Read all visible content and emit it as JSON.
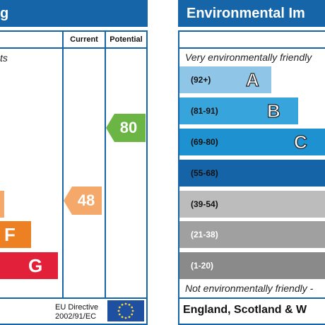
{
  "left_panel": {
    "title_fragment": "g",
    "col_current": "Current",
    "col_potential": "Potential",
    "italic_fragment": "ts",
    "bands": [
      {
        "letter": "",
        "color": "#f4a86a"
      },
      {
        "letter": "F",
        "color": "#ee8024"
      },
      {
        "letter": "G",
        "color": "#e3203a"
      }
    ],
    "current": {
      "value": "48",
      "color": "#f4a86a"
    },
    "potential": {
      "value": "80",
      "color": "#6ab543"
    },
    "footer": {
      "directive_line1": "EU Directive",
      "directive_line2": "2002/91/EC"
    }
  },
  "right_panel": {
    "title": "Environmental Im",
    "top_label": "Very environmentally friendly",
    "bottom_label": "Not environmentally friendly -",
    "bands": [
      {
        "range": "(92+)",
        "letter": "A",
        "color": "#8fc6e8",
        "range_color": "#111111"
      },
      {
        "range": "(81-91)",
        "letter": "B",
        "color": "#38a4dc",
        "range_color": "#111111"
      },
      {
        "range": "(69-80)",
        "letter": "C",
        "color": "#1e91d0",
        "range_color": "#111111"
      },
      {
        "range": "(55-68)",
        "letter": "",
        "color": "#1564a8",
        "range_color": "#111111"
      },
      {
        "range": "(39-54)",
        "letter": "",
        "color": "#bcbcbc",
        "range_color": "#111111"
      },
      {
        "range": "(21-38)",
        "letter": "",
        "color": "#a0a0a0",
        "range_color": "#ffffff"
      },
      {
        "range": "(1-20)",
        "letter": "",
        "color": "#8a8a8a",
        "range_color": "#ffffff"
      }
    ],
    "country": "England, Scotland & W"
  },
  "colors": {
    "frame": "#1565a8",
    "eu_flag": "#1f4fa0",
    "eu_star": "#f5d33a"
  }
}
